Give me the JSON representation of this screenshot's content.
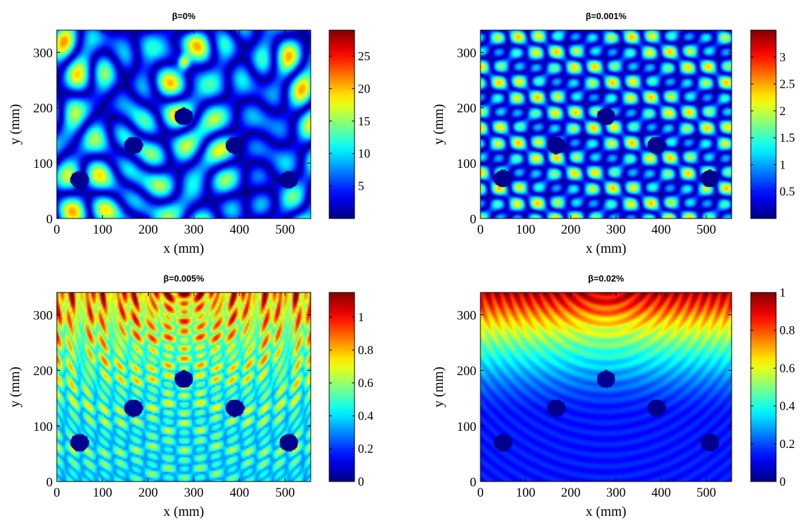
{
  "chart_data": [
    {
      "type": "heatmap",
      "title": "β=0%",
      "xlabel": "x (mm)",
      "ylabel": "y (mm)",
      "xlim": [
        0,
        556
      ],
      "ylim": [
        0,
        340
      ],
      "xticks": [
        0,
        100,
        200,
        300,
        400,
        500
      ],
      "yticks": [
        0,
        100,
        200,
        300
      ],
      "colorbar": {
        "min": 0,
        "max": 29,
        "ticks": [
          5,
          10,
          15,
          20,
          25
        ]
      },
      "colormap": "jet",
      "obstacles": [
        {
          "x": 50,
          "y": 70
        },
        {
          "x": 168,
          "y": 132
        },
        {
          "x": 278,
          "y": 184
        },
        {
          "x": 390,
          "y": 132
        },
        {
          "x": 508,
          "y": 70
        }
      ]
    },
    {
      "type": "heatmap",
      "title": "β=0.001%",
      "xlabel": "x (mm)",
      "ylabel": "y (mm)",
      "xlim": [
        0,
        556
      ],
      "ylim": [
        0,
        340
      ],
      "xticks": [
        0,
        100,
        200,
        300,
        400,
        500
      ],
      "yticks": [
        0,
        100,
        200,
        300
      ],
      "colorbar": {
        "min": 0,
        "max": 3.5,
        "ticks": [
          0.5,
          1,
          1.5,
          2,
          2.5,
          3
        ]
      },
      "colormap": "jet",
      "obstacles": [
        {
          "x": 50,
          "y": 72
        },
        {
          "x": 168,
          "y": 132
        },
        {
          "x": 278,
          "y": 184
        },
        {
          "x": 390,
          "y": 132
        },
        {
          "x": 508,
          "y": 72
        }
      ]
    },
    {
      "type": "heatmap",
      "title": "β=0.005%",
      "xlabel": "x (mm)",
      "ylabel": "y (mm)",
      "xlim": [
        0,
        556
      ],
      "ylim": [
        0,
        340
      ],
      "xticks": [
        0,
        100,
        200,
        300,
        400,
        500
      ],
      "yticks": [
        0,
        100,
        200,
        300
      ],
      "colorbar": {
        "min": 0,
        "max": 1.15,
        "ticks": [
          0,
          0.2,
          0.4,
          0.6,
          0.8,
          1
        ]
      },
      "colormap": "jet",
      "obstacles": [
        {
          "x": 50,
          "y": 70
        },
        {
          "x": 168,
          "y": 132
        },
        {
          "x": 278,
          "y": 184
        },
        {
          "x": 390,
          "y": 132
        },
        {
          "x": 508,
          "y": 70
        }
      ]
    },
    {
      "type": "heatmap",
      "title": "β=0.02%",
      "xlabel": "x (mm)",
      "ylabel": "y (mm)",
      "xlim": [
        0,
        556
      ],
      "ylim": [
        0,
        340
      ],
      "xticks": [
        0,
        100,
        200,
        300,
        400,
        500
      ],
      "yticks": [
        0,
        100,
        200,
        300
      ],
      "colorbar": {
        "min": 0,
        "max": 1,
        "ticks": [
          0,
          0.2,
          0.4,
          0.6,
          0.8,
          1
        ]
      },
      "colormap": "jet",
      "obstacles": [
        {
          "x": 50,
          "y": 70
        },
        {
          "x": 168,
          "y": 132
        },
        {
          "x": 278,
          "y": 184
        },
        {
          "x": 390,
          "y": 132
        },
        {
          "x": 508,
          "y": 70
        }
      ]
    }
  ]
}
